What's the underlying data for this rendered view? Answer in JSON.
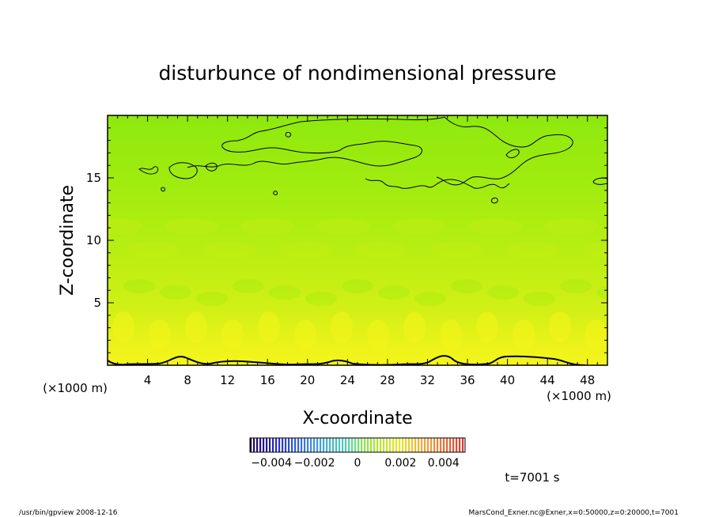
{
  "chart_data": {
    "type": "heatmap",
    "title": "disturbunce of nondimensional pressure",
    "xlabel": "X-coordinate",
    "ylabel": "Z-coordinate",
    "x_unit": "(×1000 m)",
    "y_unit": "(×1000 m)",
    "xlim": [
      0,
      50
    ],
    "ylim": [
      0,
      20
    ],
    "x_ticks": [
      4,
      8,
      12,
      16,
      20,
      24,
      28,
      32,
      36,
      40,
      44,
      48
    ],
    "y_ticks": [
      5,
      10,
      15
    ],
    "field_description": "near-zero positive disturbance; yellow near surface grading to green aloft",
    "colorbar": {
      "range": [
        -0.005,
        0.005
      ],
      "tick_values": [
        -0.004,
        -0.002,
        0,
        0.002,
        0.004
      ],
      "tick_labels": [
        "−0.004",
        "−0.002",
        "0",
        "0.002",
        "0.004"
      ]
    },
    "time_label": "t=7001 s"
  },
  "footer": {
    "left": "/usr/bin/gpview   2008-12-16",
    "right": "MarsCond_Exner.nc@Exner,x=0:50000,z=0:20000,t=7001"
  },
  "colors": {
    "field_low": "#f2f21a",
    "field_mid": "#a6ec10",
    "field_high": "#7fe80e"
  }
}
